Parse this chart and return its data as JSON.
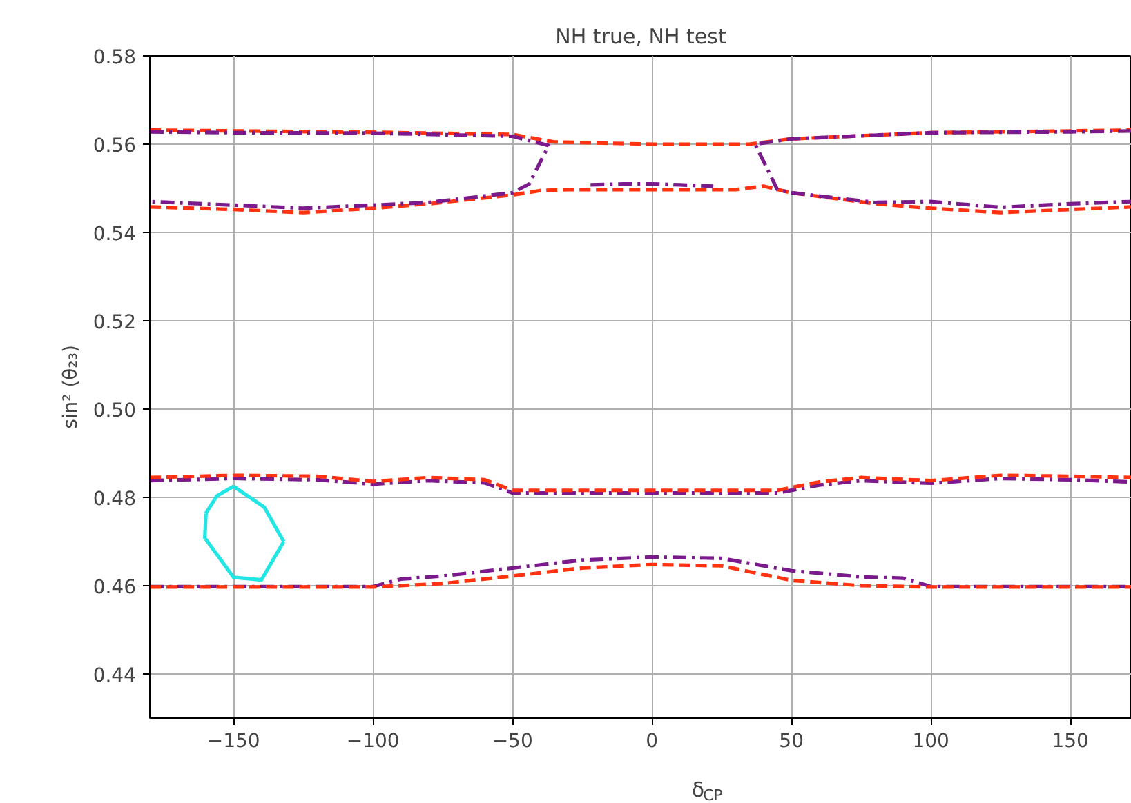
{
  "chart_data": {
    "type": "line",
    "title": "NH true, NH test",
    "xlabel": "δ$_{CP}$",
    "ylabel": "sin² (θ₂₃)",
    "xlim": [
      -180,
      172
    ],
    "ylim": [
      0.43,
      0.58
    ],
    "xticks": [
      {
        "value": -150,
        "label": "−150"
      },
      {
        "value": -100,
        "label": "−100"
      },
      {
        "value": -50,
        "label": "−50"
      },
      {
        "value": 0,
        "label": "0"
      },
      {
        "value": 50,
        "label": "50"
      },
      {
        "value": 100,
        "label": "100"
      },
      {
        "value": 150,
        "label": "150"
      }
    ],
    "yticks": [
      {
        "value": 0.44,
        "label": "0.44"
      },
      {
        "value": 0.46,
        "label": "0.46"
      },
      {
        "value": 0.48,
        "label": "0.48"
      },
      {
        "value": 0.5,
        "label": "0.50"
      },
      {
        "value": 0.52,
        "label": "0.52"
      },
      {
        "value": 0.54,
        "label": "0.54"
      },
      {
        "value": 0.56,
        "label": "0.56"
      },
      {
        "value": 0.58,
        "label": "0.58"
      }
    ],
    "grid": true,
    "series": [
      {
        "color": "#ff3311",
        "line_style": "dashed",
        "x": [
          -180,
          -150,
          -100,
          -50,
          -35,
          0,
          35,
          50,
          100,
          150,
          172
        ],
        "values": [
          0.5632,
          0.563,
          0.5627,
          0.5622,
          0.5605,
          0.56,
          0.56,
          0.5612,
          0.5626,
          0.563,
          0.5632
        ]
      },
      {
        "color": "#ff3311",
        "line_style": "dashed",
        "x": [
          -180,
          -150,
          -125,
          -100,
          -80,
          -50,
          -40,
          -30,
          0,
          30,
          40,
          50,
          80,
          100,
          125,
          150,
          172
        ],
        "values": [
          0.5458,
          0.5452,
          0.5445,
          0.5455,
          0.5465,
          0.5485,
          0.5495,
          0.5497,
          0.5497,
          0.5497,
          0.5505,
          0.549,
          0.5465,
          0.5455,
          0.5445,
          0.5452,
          0.5458
        ]
      },
      {
        "color": "#7b1a8c",
        "line_style": "dashdot",
        "x": [
          -180,
          -150,
          -100,
          -50,
          -37,
          -44,
          -50,
          -80,
          -100,
          -125,
          -150,
          -180
        ],
        "values": [
          0.5628,
          0.5626,
          0.5625,
          0.5618,
          0.5597,
          0.551,
          0.549,
          0.5468,
          0.5462,
          0.5455,
          0.5462,
          0.547
        ]
      },
      {
        "color": "#7b1a8c",
        "line_style": "dashdot",
        "x": [
          -22,
          -10,
          0,
          10,
          22
        ],
        "values": [
          0.5508,
          0.551,
          0.551,
          0.5508,
          0.5505
        ]
      },
      {
        "color": "#7b1a8c",
        "line_style": "dashdot",
        "x": [
          172,
          150,
          100,
          50,
          37,
          45,
          50,
          80,
          100,
          125,
          150,
          172
        ],
        "values": [
          0.563,
          0.5628,
          0.5626,
          0.5612,
          0.56,
          0.5497,
          0.549,
          0.5468,
          0.547,
          0.5457,
          0.5465,
          0.547
        ]
      },
      {
        "color": "#7b1a8c",
        "line_style": "dashdot",
        "x": [
          -180,
          -150,
          -120,
          -100,
          -80,
          -60,
          -50,
          0,
          45,
          60,
          75,
          100,
          125,
          150,
          172
        ],
        "values": [
          0.4838,
          0.4843,
          0.484,
          0.483,
          0.4838,
          0.4833,
          0.481,
          0.481,
          0.481,
          0.4828,
          0.4838,
          0.4832,
          0.4843,
          0.484,
          0.4835
        ]
      },
      {
        "color": "#ff3311",
        "line_style": "dashed",
        "x": [
          -180,
          -150,
          -120,
          -100,
          -80,
          -60,
          -50,
          0,
          45,
          60,
          75,
          100,
          125,
          150,
          172
        ],
        "values": [
          0.4845,
          0.485,
          0.4848,
          0.4836,
          0.4845,
          0.484,
          0.4816,
          0.4816,
          0.4816,
          0.4835,
          0.4845,
          0.4838,
          0.485,
          0.4848,
          0.4845
        ]
      },
      {
        "color": "#7b1a8c",
        "line_style": "dashdot",
        "x": [
          -180,
          -150,
          -100,
          -90,
          -75,
          -50,
          -25,
          0,
          25,
          50,
          75,
          90,
          100,
          150,
          172
        ],
        "values": [
          0.4598,
          0.4598,
          0.4598,
          0.4615,
          0.4622,
          0.464,
          0.4658,
          0.4665,
          0.4662,
          0.4634,
          0.462,
          0.4617,
          0.4598,
          0.4598,
          0.4598
        ]
      },
      {
        "color": "#ff3311",
        "line_style": "dashed",
        "x": [
          -180,
          -150,
          -100,
          -75,
          -50,
          -25,
          0,
          25,
          50,
          75,
          100,
          150,
          172
        ],
        "values": [
          0.4597,
          0.4597,
          0.4597,
          0.4605,
          0.4622,
          0.464,
          0.4648,
          0.4645,
          0.4612,
          0.46,
          0.4597,
          0.4597,
          0.4597
        ]
      },
      {
        "color": "#22e5e5",
        "line_style": "solid",
        "x": [
          -160,
          -156,
          -150
        ],
        "values": [
          0.4763,
          0.4803,
          0.4825
        ]
      },
      {
        "color": "#22e5e5",
        "line_style": "solid",
        "x": [
          -150,
          -139,
          -132
        ],
        "values": [
          0.4825,
          0.4778,
          0.47
        ]
      },
      {
        "color": "#22e5e5",
        "line_style": "solid",
        "x": [
          -160,
          -150,
          -140,
          -132
        ],
        "values": [
          0.4706,
          0.4619,
          0.4613,
          0.47
        ]
      },
      {
        "color": "#22e5e5",
        "line_style": "solid",
        "x": [
          -160.3,
          -159.9
        ],
        "values": [
          0.4706,
          0.4763
        ]
      }
    ]
  }
}
